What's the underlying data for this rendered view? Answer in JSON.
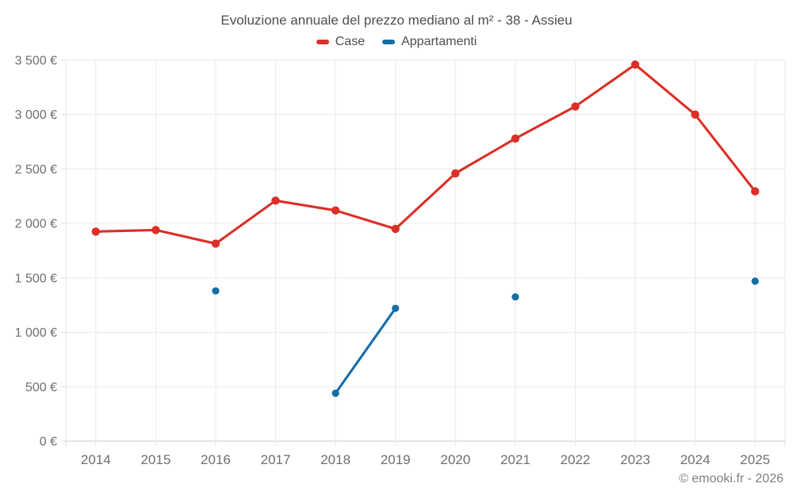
{
  "chart": {
    "title": "Evoluzione annuale del prezzo mediano al m² - 38 - Assieu",
    "footer": "© emooki.fr - 2026",
    "legend": [
      {
        "label": "Case",
        "color": "#db2f27"
      },
      {
        "label": "Appartamenti",
        "color": "#166da6"
      }
    ]
  },
  "chart_data": {
    "type": "line",
    "title": "Evoluzione annuale del prezzo mediano al m² - 38 - Assieu",
    "categories": [
      "2014",
      "2015",
      "2016",
      "2017",
      "2018",
      "2019",
      "2020",
      "2021",
      "2022",
      "2023",
      "2024",
      "2025"
    ],
    "series": [
      {
        "name": "Case",
        "color": "#db2f27",
        "values": [
          1925,
          1940,
          1815,
          2210,
          2120,
          1950,
          2460,
          2780,
          3075,
          3460,
          3000,
          2295
        ]
      },
      {
        "name": "Appartamenti",
        "color": "#166da6",
        "values": [
          null,
          null,
          1380,
          null,
          440,
          1220,
          null,
          1325,
          null,
          null,
          null,
          1470
        ]
      }
    ],
    "ylim": [
      0,
      3500
    ],
    "yticks": [
      {
        "value": 0,
        "label": "0 €"
      },
      {
        "value": 500,
        "label": "500 €"
      },
      {
        "value": 1000,
        "label": "1 000 €"
      },
      {
        "value": 1500,
        "label": "1 500 €"
      },
      {
        "value": 2000,
        "label": "2 000 €"
      },
      {
        "value": 2500,
        "label": "2 500 €"
      },
      {
        "value": 3000,
        "label": "3 000 €"
      },
      {
        "value": 3500,
        "label": "3 500 €"
      }
    ],
    "grid": true,
    "legend_position": "top",
    "currency": "€"
  }
}
